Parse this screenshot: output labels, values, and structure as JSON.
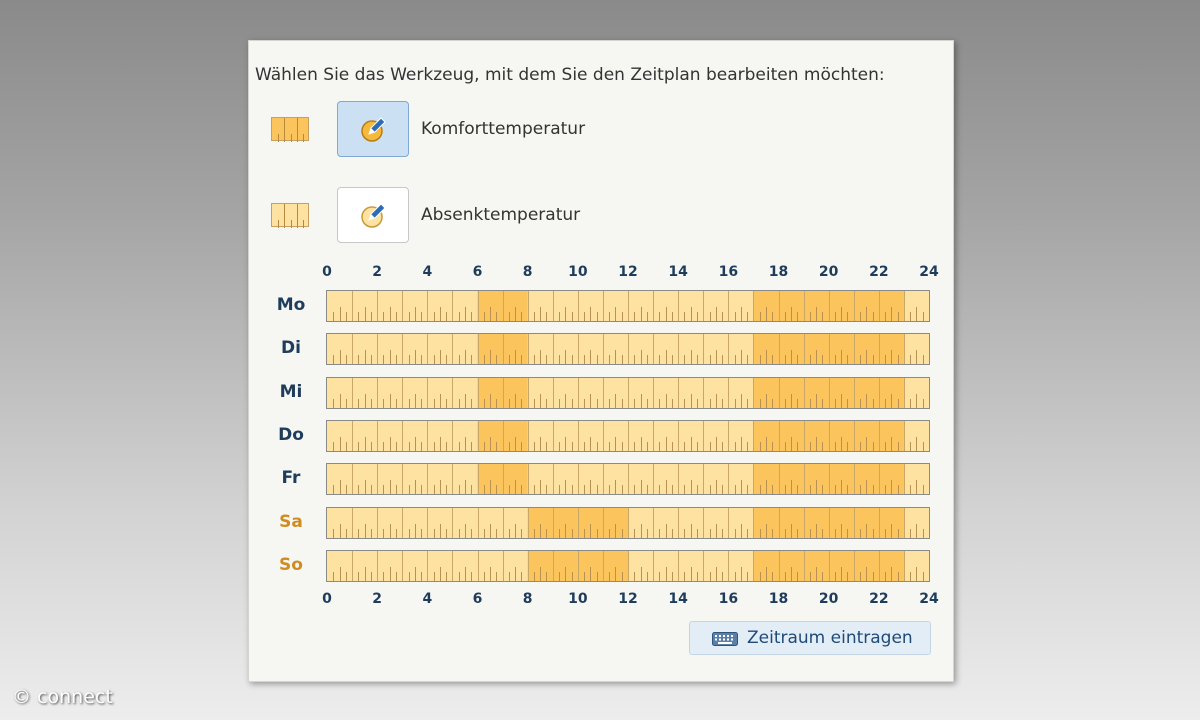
{
  "colors": {
    "comfort": "#fcc45c",
    "eco": "#fde2a2",
    "text_dark": "#1e3c5c",
    "weekend": "#d08c20",
    "active_button": "#cce0f4"
  },
  "instruction": "Wählen Sie das Werkzeug, mit dem Sie den Zeitplan bearbeiten möchten:",
  "tools": [
    {
      "label": "Komforttemperatur",
      "icon": "pencil-edit-icon",
      "selected": true
    },
    {
      "label": "Absenktemperatur",
      "icon": "pencil-edit-icon",
      "selected": false
    }
  ],
  "axis": {
    "min": 0,
    "max": 24,
    "ticks": [
      "0",
      "2",
      "4",
      "6",
      "8",
      "10",
      "12",
      "14",
      "16",
      "18",
      "20",
      "22",
      "24"
    ]
  },
  "schedule": [
    {
      "day": "Mo",
      "weekend": false,
      "comfort_periods": [
        [
          6,
          8
        ],
        [
          17,
          23
        ]
      ]
    },
    {
      "day": "Di",
      "weekend": false,
      "comfort_periods": [
        [
          6,
          8
        ],
        [
          17,
          23
        ]
      ]
    },
    {
      "day": "Mi",
      "weekend": false,
      "comfort_periods": [
        [
          6,
          8
        ],
        [
          17,
          23
        ]
      ]
    },
    {
      "day": "Do",
      "weekend": false,
      "comfort_periods": [
        [
          6,
          8
        ],
        [
          17,
          23
        ]
      ]
    },
    {
      "day": "Fr",
      "weekend": false,
      "comfort_periods": [
        [
          6,
          8
        ],
        [
          17,
          23
        ]
      ]
    },
    {
      "day": "Sa",
      "weekend": true,
      "comfort_periods": [
        [
          8,
          12
        ],
        [
          17,
          23
        ]
      ]
    },
    {
      "day": "So",
      "weekend": true,
      "comfort_periods": [
        [
          8,
          12
        ],
        [
          17,
          23
        ]
      ]
    }
  ],
  "entry_button": {
    "label": "Zeitraum eintragen",
    "icon": "keyboard-icon"
  },
  "watermark": "© connect"
}
